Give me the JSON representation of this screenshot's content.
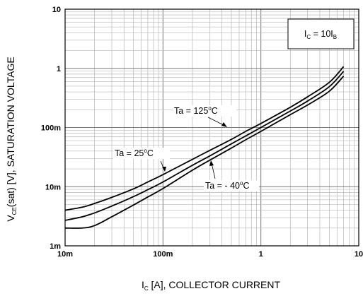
{
  "chart_data": {
    "type": "line",
    "x_scale": "log",
    "y_scale": "log",
    "xlim": [
      0.01,
      10
    ],
    "ylim": [
      0.001,
      10
    ],
    "grid": true,
    "x_ticks": [
      {
        "value": 0.01,
        "label": "10m"
      },
      {
        "value": 0.1,
        "label": "100m"
      },
      {
        "value": 1,
        "label": "1"
      },
      {
        "value": 10,
        "label": "10"
      }
    ],
    "y_ticks": [
      {
        "value": 0.001,
        "label": "1m"
      },
      {
        "value": 0.01,
        "label": "10m"
      },
      {
        "value": 0.1,
        "label": "100m"
      },
      {
        "value": 1,
        "label": "1"
      },
      {
        "value": 10,
        "label": "10"
      }
    ],
    "xlabel": {
      "pre": "I",
      "sub": "C",
      "post": " [A], COLLECTOR CURRENT"
    },
    "ylabel": {
      "pre": "V",
      "sub": "CE",
      "post": "(sat) [V], SATURATION VOLTAGE"
    },
    "condition": {
      "a": "I",
      "b": "C",
      "c": " = 10I",
      "d": "B"
    },
    "series": [
      {
        "name": "Ta = 125°C",
        "label": {
          "pre": "Ta = 125",
          "sup": "o",
          "post": "C"
        },
        "x": [
          0.01,
          0.015,
          0.02,
          0.03,
          0.05,
          0.07,
          0.1,
          0.2,
          0.3,
          0.5,
          0.7,
          1,
          2,
          3,
          5,
          7
        ],
        "y": [
          0.004,
          0.0045,
          0.0052,
          0.0066,
          0.0092,
          0.012,
          0.016,
          0.029,
          0.041,
          0.063,
          0.086,
          0.117,
          0.22,
          0.33,
          0.58,
          1.07
        ]
      },
      {
        "name": "Ta = 25°C",
        "label": {
          "pre": "Ta = 25",
          "sup": "o",
          "post": "C"
        },
        "x": [
          0.01,
          0.015,
          0.02,
          0.03,
          0.05,
          0.07,
          0.1,
          0.2,
          0.3,
          0.5,
          0.7,
          1,
          2,
          3,
          5,
          7
        ],
        "y": [
          0.0027,
          0.0031,
          0.0036,
          0.0047,
          0.0068,
          0.0089,
          0.012,
          0.023,
          0.033,
          0.053,
          0.072,
          0.1,
          0.19,
          0.28,
          0.49,
          0.89
        ]
      },
      {
        "name": "Ta = - 40°C",
        "label": {
          "pre": "Ta = - 40",
          "sup": "o",
          "post": "C"
        },
        "x": [
          0.01,
          0.015,
          0.02,
          0.03,
          0.05,
          0.07,
          0.1,
          0.2,
          0.3,
          0.5,
          0.7,
          1,
          2,
          3,
          5,
          7
        ],
        "y": [
          0.002,
          0.002,
          0.0022,
          0.0031,
          0.0049,
          0.0067,
          0.0093,
          0.019,
          0.028,
          0.045,
          0.062,
          0.086,
          0.165,
          0.24,
          0.41,
          0.74
        ]
      }
    ]
  }
}
